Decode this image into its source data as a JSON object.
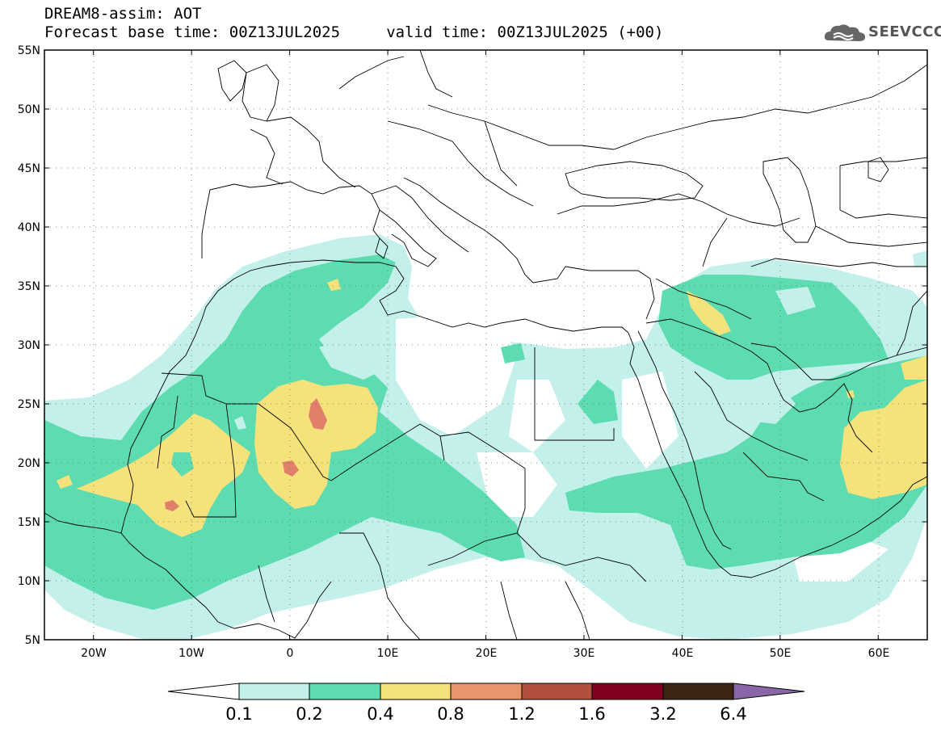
{
  "header": {
    "line1": "DREAM8-assim: AOT",
    "line2": "Forecast base time: 00Z13JUL2025     valid time: 00Z13JUL2025 (+00)"
  },
  "logo": {
    "text": "SEEVCCC",
    "icon": "cloud-icon"
  },
  "map": {
    "lon_range": [
      -25,
      65
    ],
    "lat_range": [
      5,
      55
    ],
    "lat_ticks": [
      "55N",
      "50N",
      "45N",
      "40N",
      "35N",
      "30N",
      "25N",
      "20N",
      "15N",
      "10N",
      "5N"
    ],
    "lon_ticks": [
      "20W",
      "10W",
      "0",
      "10E",
      "20E",
      "30E",
      "40E",
      "50E",
      "60E"
    ],
    "grid": "dotted"
  },
  "colorbar": {
    "labels": [
      "0.1",
      "0.2",
      "0.4",
      "0.8",
      "1.2",
      "1.6",
      "3.2",
      "6.4"
    ],
    "colors": [
      "#c4f0eb",
      "#5cdcb0",
      "#f6e27a",
      "#e8956b",
      "#b2503e",
      "#800020",
      "#3d2514",
      "#8a66a8"
    ],
    "below_color": "#ffffff",
    "above_color": "#8a66a8"
  },
  "field_colors": {
    "c1": "#c4f0eb",
    "c2": "#5cdcb0",
    "c3": "#f6e27a",
    "c4": "#e0806a"
  }
}
